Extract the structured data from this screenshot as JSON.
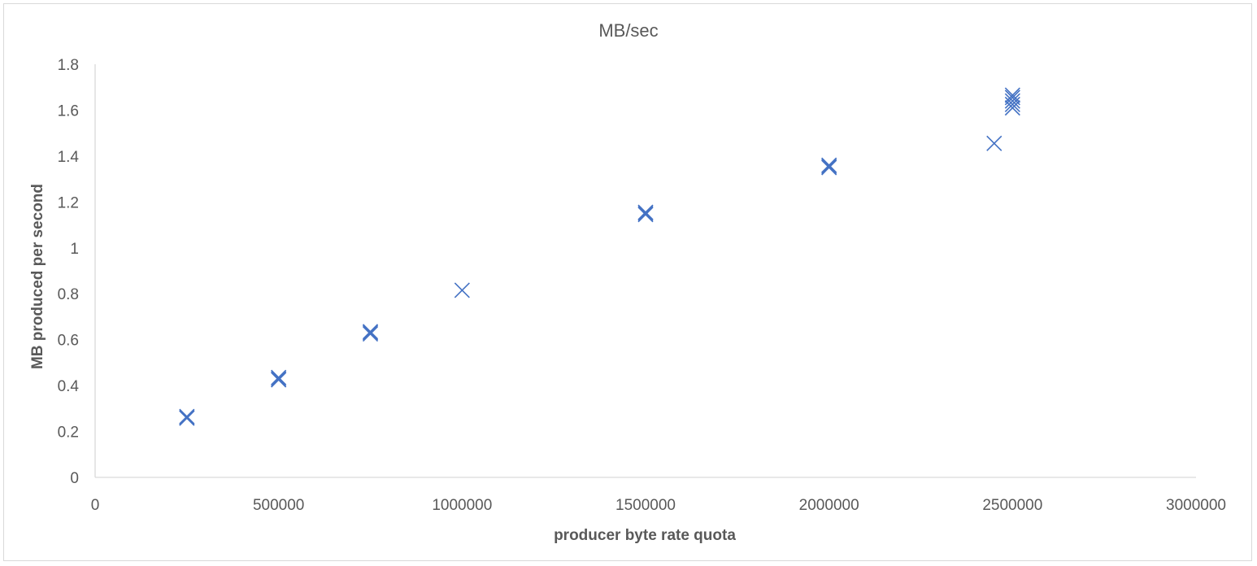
{
  "chart_data": {
    "type": "scatter",
    "title": "MB/sec",
    "xlabel": "producer byte rate quota",
    "ylabel": "MB produced per second",
    "xlim": [
      0,
      3000000
    ],
    "ylim": [
      0,
      1.8
    ],
    "x_ticks": [
      "0",
      "500000",
      "1000000",
      "1500000",
      "2000000",
      "2500000",
      "3000000"
    ],
    "y_ticks": [
      "0",
      "0.2",
      "0.4",
      "0.6",
      "0.8",
      "1",
      "1.2",
      "1.4",
      "1.6",
      "1.8"
    ],
    "marker": "x",
    "grid": false,
    "legend": "none",
    "color": "#4472c4",
    "series": [
      {
        "points": [
          [
            250000,
            0.26
          ],
          [
            250000,
            0.265
          ],
          [
            250000,
            0.258
          ],
          [
            500000,
            0.43
          ],
          [
            500000,
            0.435
          ],
          [
            500000,
            0.425
          ],
          [
            750000,
            0.63
          ],
          [
            750000,
            0.625
          ],
          [
            750000,
            0.635
          ],
          [
            1000000,
            0.815
          ],
          [
            1500000,
            1.15
          ],
          [
            1500000,
            1.155
          ],
          [
            1500000,
            1.145
          ],
          [
            2000000,
            1.35
          ],
          [
            2000000,
            1.36
          ],
          [
            2000000,
            1.355
          ],
          [
            2500000,
            1.665
          ],
          [
            2500000,
            1.655
          ],
          [
            2500000,
            1.64
          ],
          [
            2500000,
            1.625
          ],
          [
            2500000,
            1.61
          ],
          [
            2450000,
            1.455
          ]
        ]
      }
    ]
  }
}
